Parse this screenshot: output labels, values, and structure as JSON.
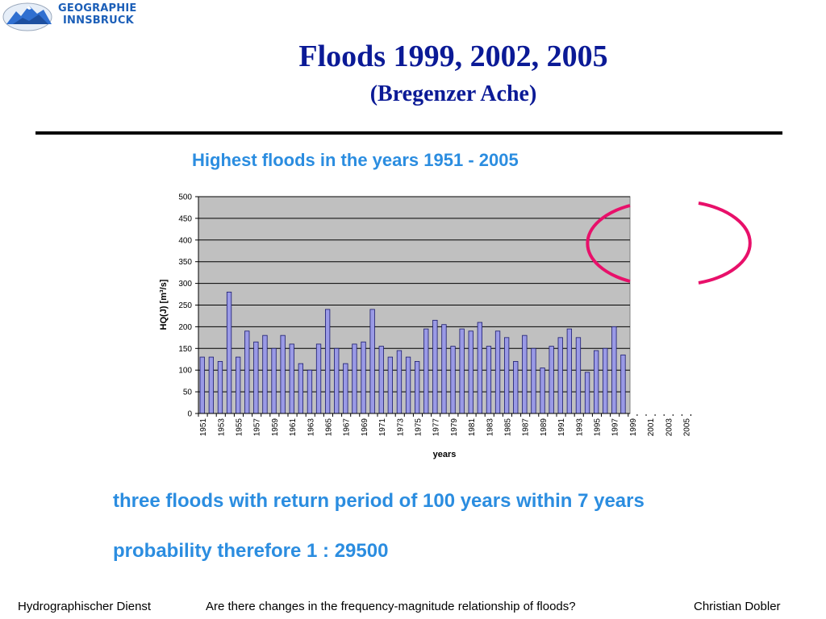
{
  "header": {
    "logo_line1": "GEOGRAPHIE",
    "logo_line2": "INNSBRUCK",
    "title": "Floods 1999, 2002, 2005",
    "subtitle": "(Bregenzer Ache)"
  },
  "chart_data": {
    "type": "bar",
    "title": "Highest floods in the years 1951 - 2005",
    "xlabel": "years",
    "ylabel": "HQ(J) [m³/s]",
    "ylim": [
      0,
      500
    ],
    "yticks": [
      0,
      50,
      100,
      150,
      200,
      250,
      300,
      350,
      400,
      450,
      500
    ],
    "grid": true,
    "categories": [
      "1951",
      "1952",
      "1953",
      "1954",
      "1955",
      "1956",
      "1957",
      "1958",
      "1959",
      "1960",
      "1961",
      "1962",
      "1963",
      "1964",
      "1965",
      "1966",
      "1967",
      "1968",
      "1969",
      "1970",
      "1971",
      "1972",
      "1973",
      "1974",
      "1975",
      "1976",
      "1977",
      "1978",
      "1979",
      "1980",
      "1981",
      "1982",
      "1983",
      "1984",
      "1985",
      "1986",
      "1987",
      "1988",
      "1989",
      "1990",
      "1991",
      "1992",
      "1993",
      "1994",
      "1995",
      "1996",
      "1997",
      "1998",
      "1999",
      "2000",
      "2001",
      "2002",
      "2003",
      "2004",
      "2005"
    ],
    "xtick_labels": [
      "1951",
      "1953",
      "1955",
      "1957",
      "1959",
      "1961",
      "1963",
      "1965",
      "1967",
      "1969",
      "1971",
      "1973",
      "1975",
      "1977",
      "1979",
      "1981",
      "1983",
      "1985",
      "1987",
      "1989",
      "1991",
      "1993",
      "1995",
      "1997",
      "1999",
      "2001",
      "2003",
      "2005"
    ],
    "values": [
      130,
      130,
      120,
      280,
      130,
      190,
      165,
      180,
      150,
      180,
      160,
      115,
      100,
      160,
      240,
      150,
      115,
      160,
      165,
      240,
      155,
      130,
      145,
      130,
      120,
      195,
      215,
      205,
      155,
      195,
      190,
      210,
      155,
      190,
      175,
      120,
      180,
      150,
      105,
      155,
      175,
      195,
      175,
      95,
      145,
      150,
      200,
      135,
      null,
      null,
      null,
      null,
      null,
      null,
      null
    ],
    "colors": {
      "bar_fill": "#9a9ae6",
      "bar_stroke": "#1a1a6e",
      "plot_bg": "#c0c0c0",
      "annotation_circle": "#e8106a"
    }
  },
  "notes": {
    "line1": "three floods with return period of 100 years within 7 years",
    "line2": "probability therefore 1 : 29500"
  },
  "footer": {
    "left": "Hydrographischer Dienst",
    "center": "Are there changes in the frequency-magnitude relationship of floods?",
    "right": "Christian Dobler"
  }
}
